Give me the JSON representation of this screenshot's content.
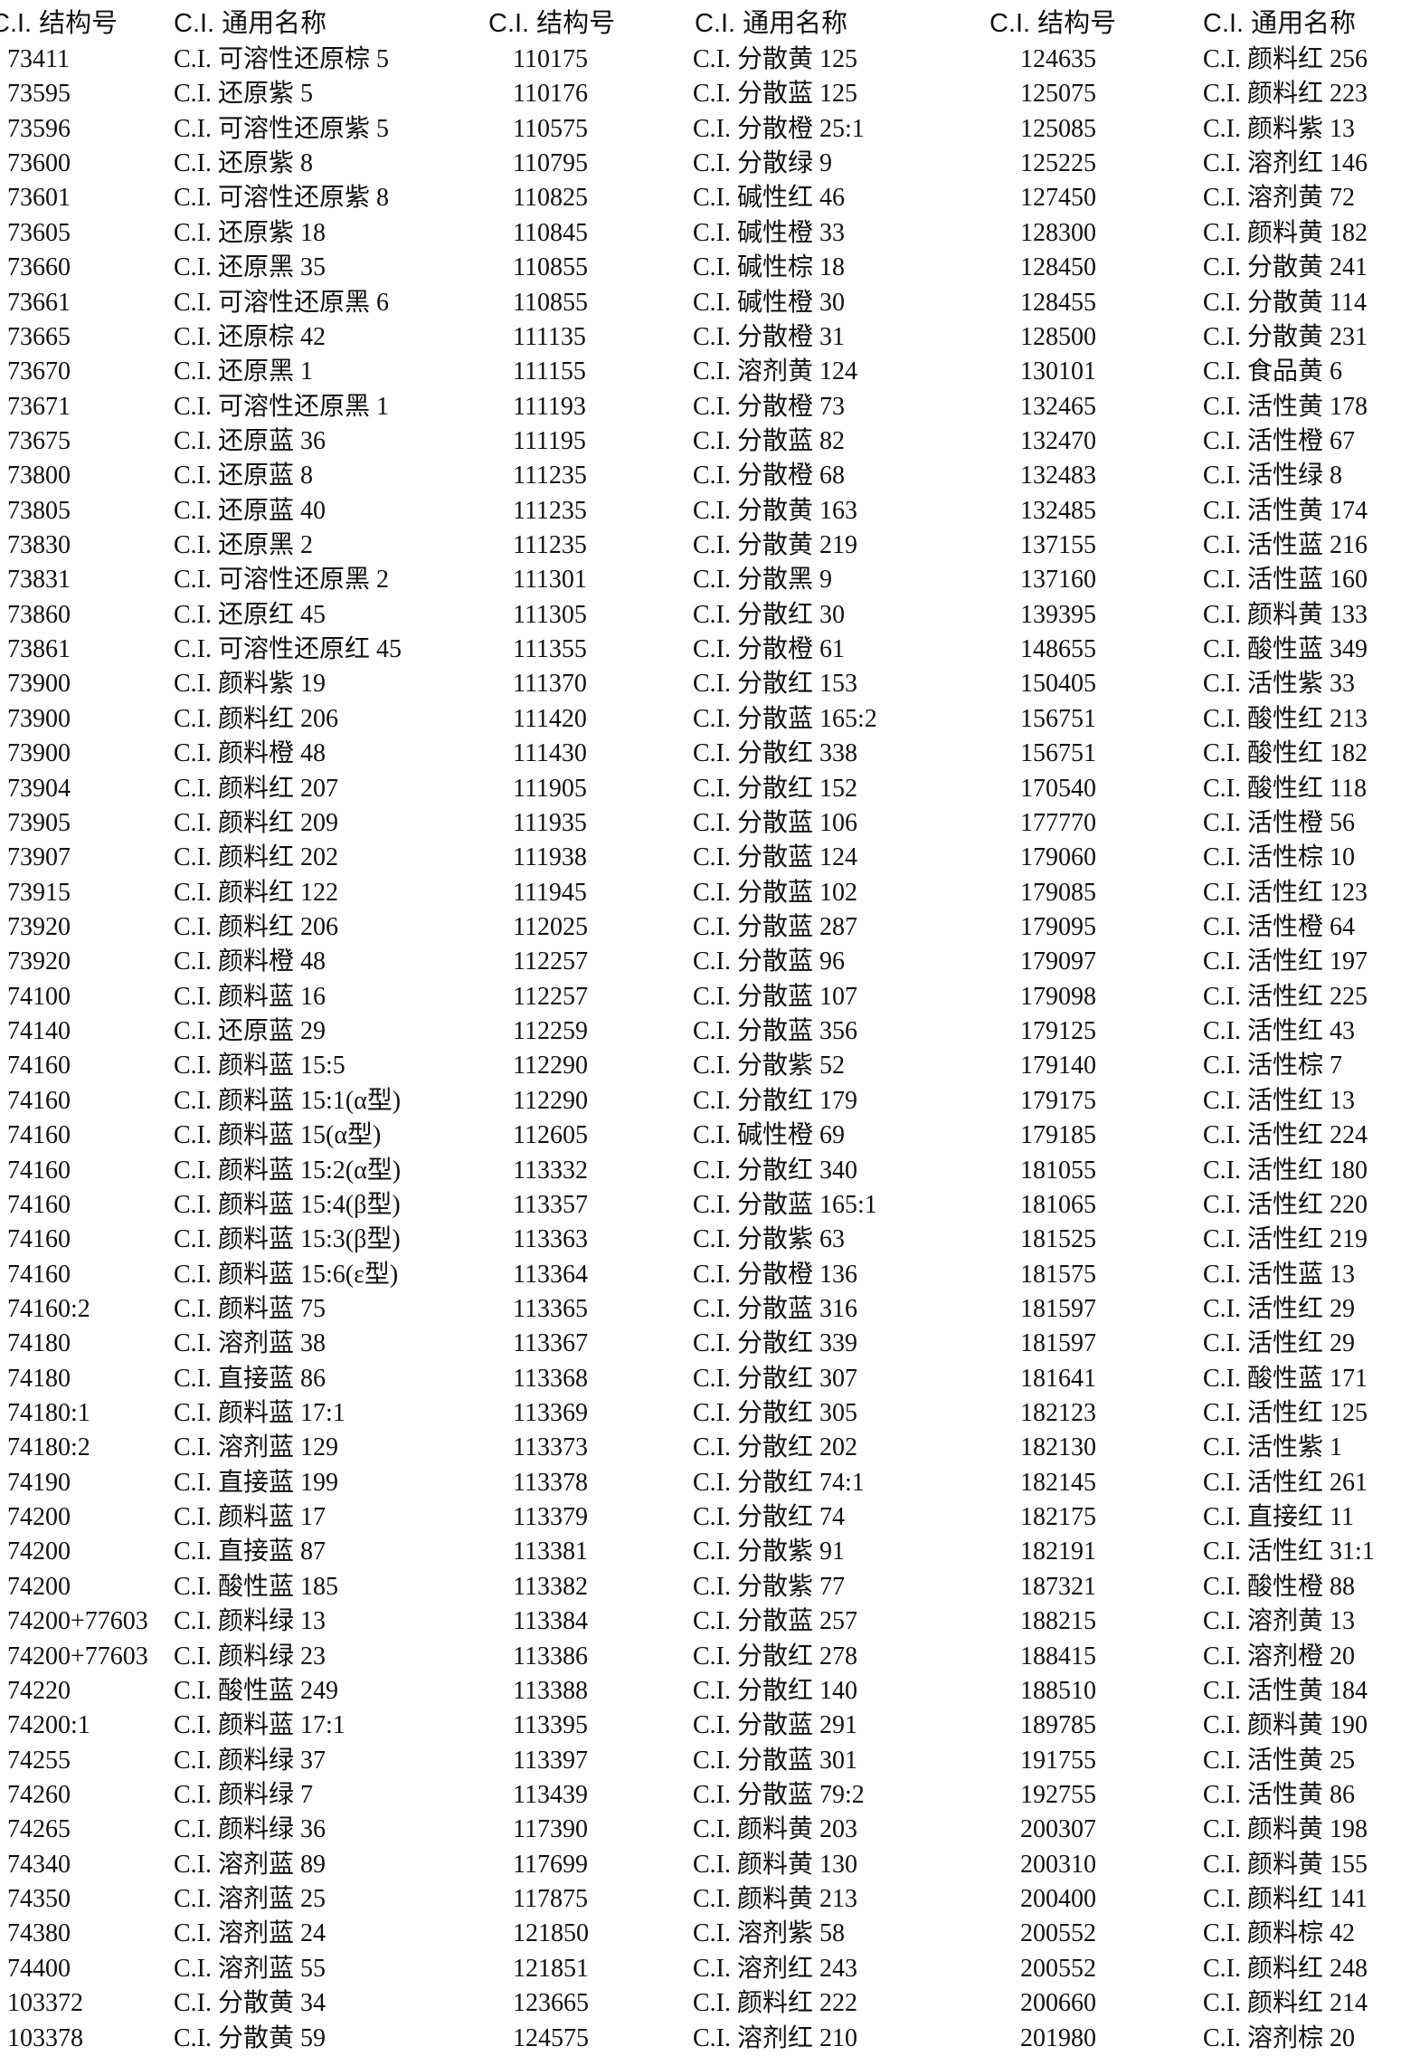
{
  "headers": [
    "C.I. 结构号",
    "C.I. 通用名称",
    "C.I. 结构号",
    "C.I. 通用名称",
    "C.I. 结构号",
    "C.I. 通用名称"
  ],
  "rows": [
    [
      "73411",
      "C.I. 可溶性还原棕 5",
      "110175",
      "C.I. 分散黄 125",
      "124635",
      "C.I. 颜料红 256"
    ],
    [
      "73595",
      "C.I. 还原紫 5",
      "110176",
      "C.I. 分散蓝 125",
      "125075",
      "C.I. 颜料红 223"
    ],
    [
      "73596",
      "C.I. 可溶性还原紫 5",
      "110575",
      "C.I. 分散橙 25:1",
      "125085",
      "C.I. 颜料紫 13"
    ],
    [
      "73600",
      "C.I. 还原紫 8",
      "110795",
      "C.I. 分散绿 9",
      "125225",
      "C.I. 溶剂红 146"
    ],
    [
      "73601",
      "C.I. 可溶性还原紫 8",
      "110825",
      "C.I. 碱性红 46",
      "127450",
      "C.I. 溶剂黄 72"
    ],
    [
      "73605",
      "C.I. 还原紫 18",
      "110845",
      "C.I. 碱性橙 33",
      "128300",
      "C.I. 颜料黄 182"
    ],
    [
      "73660",
      "C.I. 还原黑 35",
      "110855",
      "C.I. 碱性棕 18",
      "128450",
      "C.I. 分散黄 241"
    ],
    [
      "73661",
      "C.I. 可溶性还原黑 6",
      "110855",
      "C.I. 碱性橙 30",
      "128455",
      "C.I. 分散黄 114"
    ],
    [
      "73665",
      "C.I. 还原棕 42",
      "111135",
      "C.I. 分散橙 31",
      "128500",
      "C.I. 分散黄 231"
    ],
    [
      "73670",
      "C.I. 还原黑 1",
      "111155",
      "C.I. 溶剂黄 124",
      "130101",
      "C.I. 食品黄 6"
    ],
    [
      "73671",
      "C.I. 可溶性还原黑 1",
      "111193",
      "C.I. 分散橙 73",
      "132465",
      "C.I. 活性黄 178"
    ],
    [
      "73675",
      "C.I. 还原蓝 36",
      "111195",
      "C.I. 分散蓝 82",
      "132470",
      "C.I. 活性橙 67"
    ],
    [
      "73800",
      "C.I. 还原蓝 8",
      "111235",
      "C.I. 分散橙 68",
      "132483",
      "C.I. 活性绿 8"
    ],
    [
      "73805",
      "C.I. 还原蓝 40",
      "111235",
      "C.I. 分散黄 163",
      "132485",
      "C.I. 活性黄 174"
    ],
    [
      "73830",
      "C.I. 还原黑 2",
      "111235",
      "C.I. 分散黄 219",
      "137155",
      "C.I. 活性蓝 216"
    ],
    [
      "73831",
      "C.I. 可溶性还原黑 2",
      "111301",
      "C.I. 分散黑 9",
      "137160",
      "C.I. 活性蓝 160"
    ],
    [
      "73860",
      "C.I. 还原红 45",
      "111305",
      "C.I. 分散红 30",
      "139395",
      "C.I. 颜料黄 133"
    ],
    [
      "73861",
      "C.I. 可溶性还原红 45",
      "111355",
      "C.I. 分散橙 61",
      "148655",
      "C.I. 酸性蓝 349"
    ],
    [
      "73900",
      "C.I. 颜料紫 19",
      "111370",
      "C.I. 分散红 153",
      "150405",
      "C.I. 活性紫 33"
    ],
    [
      "73900",
      "C.I. 颜料红 206",
      "111420",
      "C.I. 分散蓝 165:2",
      "156751",
      "C.I. 酸性红 213"
    ],
    [
      "73900",
      "C.I. 颜料橙 48",
      "111430",
      "C.I. 分散红 338",
      "156751",
      "C.I. 酸性红 182"
    ],
    [
      "73904",
      "C.I. 颜料红 207",
      "111905",
      "C.I. 分散红 152",
      "170540",
      "C.I. 酸性红 118"
    ],
    [
      "73905",
      "C.I. 颜料红 209",
      "111935",
      "C.I. 分散蓝 106",
      "177770",
      "C.I. 活性橙 56"
    ],
    [
      "73907",
      "C.I. 颜料红 202",
      "111938",
      "C.I. 分散蓝 124",
      "179060",
      "C.I. 活性棕 10"
    ],
    [
      "73915",
      "C.I. 颜料红 122",
      "111945",
      "C.I. 分散蓝 102",
      "179085",
      "C.I. 活性红 123"
    ],
    [
      "73920",
      "C.I. 颜料红 206",
      "112025",
      "C.I. 分散蓝 287",
      "179095",
      "C.I. 活性橙 64"
    ],
    [
      "73920",
      "C.I. 颜料橙 48",
      "112257",
      "C.I. 分散蓝 96",
      "179097",
      "C.I. 活性红 197"
    ],
    [
      "74100",
      "C.I. 颜料蓝 16",
      "112257",
      "C.I. 分散蓝 107",
      "179098",
      "C.I. 活性红 225"
    ],
    [
      "74140",
      "C.I. 还原蓝 29",
      "112259",
      "C.I. 分散蓝 356",
      "179125",
      "C.I. 活性红 43"
    ],
    [
      "74160",
      "C.I. 颜料蓝 15:5",
      "112290",
      "C.I. 分散紫 52",
      "179140",
      "C.I. 活性棕 7"
    ],
    [
      "74160",
      "C.I. 颜料蓝 15:1(α型)",
      "112290",
      "C.I. 分散红 179",
      "179175",
      "C.I. 活性红 13"
    ],
    [
      "74160",
      "C.I. 颜料蓝 15(α型)",
      "112605",
      "C.I. 碱性橙 69",
      "179185",
      "C.I. 活性红 224"
    ],
    [
      "74160",
      "C.I. 颜料蓝 15:2(α型)",
      "113332",
      "C.I. 分散红 340",
      "181055",
      "C.I. 活性红 180"
    ],
    [
      "74160",
      "C.I. 颜料蓝 15:4(β型)",
      "113357",
      "C.I. 分散蓝 165:1",
      "181065",
      "C.I. 活性红 220"
    ],
    [
      "74160",
      "C.I. 颜料蓝 15:3(β型)",
      "113363",
      "C.I. 分散紫 63",
      "181525",
      "C.I. 活性红 219"
    ],
    [
      "74160",
      "C.I. 颜料蓝 15:6(ε型)",
      "113364",
      "C.I. 分散橙 136",
      "181575",
      "C.I. 活性蓝 13"
    ],
    [
      "74160:2",
      "C.I. 颜料蓝 75",
      "113365",
      "C.I. 分散蓝 316",
      "181597",
      "C.I. 活性红 29"
    ],
    [
      "74180",
      "C.I. 溶剂蓝 38",
      "113367",
      "C.I. 分散红 339",
      "181597",
      "C.I. 活性红 29"
    ],
    [
      "74180",
      "C.I. 直接蓝 86",
      "113368",
      "C.I. 分散红 307",
      "181641",
      "C.I. 酸性蓝 171"
    ],
    [
      "74180:1",
      "C.I. 颜料蓝 17:1",
      "113369",
      "C.I. 分散红 305",
      "182123",
      "C.I. 活性红 125"
    ],
    [
      "74180:2",
      "C.I. 溶剂蓝 129",
      "113373",
      "C.I. 分散红 202",
      "182130",
      "C.I. 活性紫 1"
    ],
    [
      "74190",
      "C.I. 直接蓝 199",
      "113378",
      "C.I. 分散红 74:1",
      "182145",
      "C.I. 活性红 261"
    ],
    [
      "74200",
      "C.I. 颜料蓝 17",
      "113379",
      "C.I. 分散红 74",
      "182175",
      "C.I. 直接红 11"
    ],
    [
      "74200",
      "C.I. 直接蓝 87",
      "113381",
      "C.I. 分散紫 91",
      "182191",
      "C.I. 活性红 31:1"
    ],
    [
      "74200",
      "C.I. 酸性蓝 185",
      "113382",
      "C.I. 分散紫 77",
      "187321",
      "C.I. 酸性橙 88"
    ],
    [
      "74200+77603",
      "C.I. 颜料绿 13",
      "113384",
      "C.I. 分散蓝 257",
      "188215",
      "C.I. 溶剂黄 13"
    ],
    [
      "74200+77603",
      "C.I. 颜料绿 23",
      "113386",
      "C.I. 分散红 278",
      "188415",
      "C.I. 溶剂橙 20"
    ],
    [
      "74220",
      "C.I. 酸性蓝 249",
      "113388",
      "C.I. 分散红 140",
      "188510",
      "C.I. 活性黄 184"
    ],
    [
      "74200:1",
      "C.I. 颜料蓝 17:1",
      "113395",
      "C.I. 分散蓝 291",
      "189785",
      "C.I. 颜料黄 190"
    ],
    [
      "74255",
      "C.I. 颜料绿 37",
      "113397",
      "C.I. 分散蓝 301",
      "191755",
      "C.I. 活性黄 25"
    ],
    [
      "74260",
      "C.I. 颜料绿 7",
      "113439",
      "C.I. 分散蓝 79:2",
      "192755",
      "C.I. 活性黄 86"
    ],
    [
      "74265",
      "C.I. 颜料绿 36",
      "117390",
      "C.I. 颜料黄 203",
      "200307",
      "C.I. 颜料黄 198"
    ],
    [
      "74340",
      "C.I. 溶剂蓝 89",
      "117699",
      "C.I. 颜料黄 130",
      "200310",
      "C.I. 颜料黄 155"
    ],
    [
      "74350",
      "C.I. 溶剂蓝 25",
      "117875",
      "C.I. 颜料黄 213",
      "200400",
      "C.I. 颜料红 141"
    ],
    [
      "74380",
      "C.I. 溶剂蓝 24",
      "121850",
      "C.I. 溶剂紫 58",
      "200552",
      "C.I. 颜料棕 42"
    ],
    [
      "74400",
      "C.I. 溶剂蓝 55",
      "121851",
      "C.I. 溶剂红 243",
      "200552",
      "C.I. 颜料红 248"
    ],
    [
      "103372",
      "C.I. 分散黄 34",
      "123665",
      "C.I. 颜料红 222",
      "200660",
      "C.I. 颜料红 214"
    ],
    [
      "103378",
      "C.I. 分散黄 59",
      "124575",
      "C.I. 溶剂红 210",
      "201980",
      "C.I. 溶剂棕 20"
    ]
  ]
}
